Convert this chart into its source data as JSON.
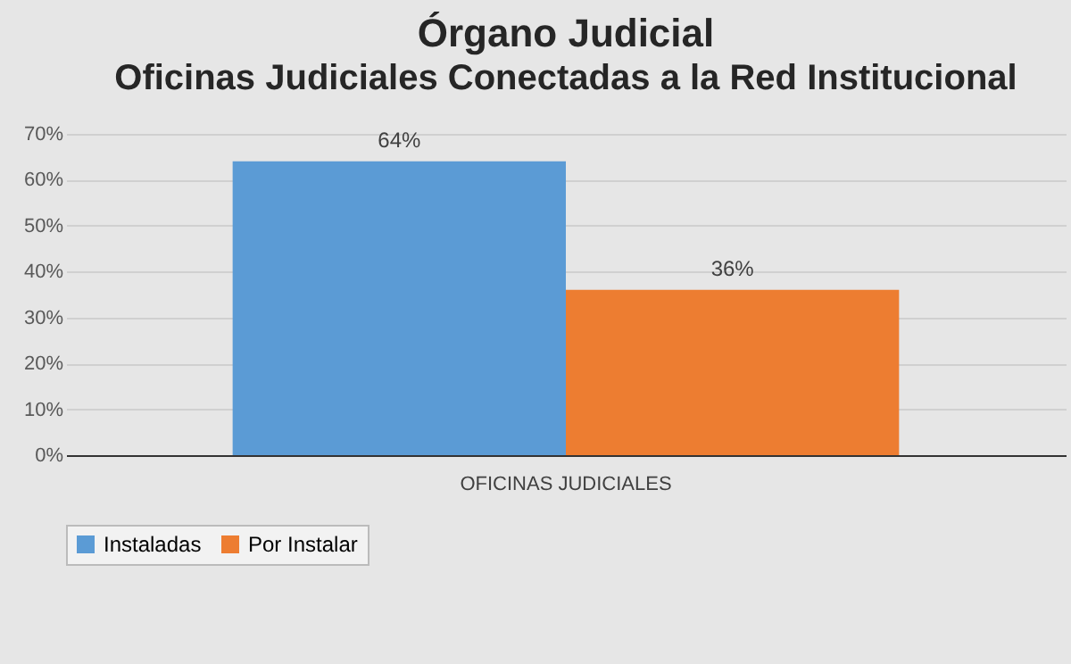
{
  "chart_data": {
    "type": "bar",
    "title": "Órgano Judicial",
    "subtitle": "Oficinas Judiciales Conectadas a la Red Institucional",
    "categories": [
      "OFICINAS JUDICIALES"
    ],
    "series": [
      {
        "name": "Instaladas",
        "color": "#5b9bd5",
        "values": [
          64
        ],
        "value_labels": [
          "64%"
        ]
      },
      {
        "name": "Por Instalar",
        "color": "#ed7d31",
        "values": [
          36
        ],
        "value_labels": [
          "36%"
        ]
      }
    ],
    "ylim": [
      0,
      70
    ],
    "yticks": [
      {
        "value": 0,
        "label": "0%"
      },
      {
        "value": 10,
        "label": "10%"
      },
      {
        "value": 20,
        "label": "20%"
      },
      {
        "value": 30,
        "label": "30%"
      },
      {
        "value": 40,
        "label": "40%"
      },
      {
        "value": 50,
        "label": "50%"
      },
      {
        "value": 60,
        "label": "60%"
      },
      {
        "value": 70,
        "label": "70%"
      }
    ],
    "grid": "y",
    "legend": "bottom"
  }
}
